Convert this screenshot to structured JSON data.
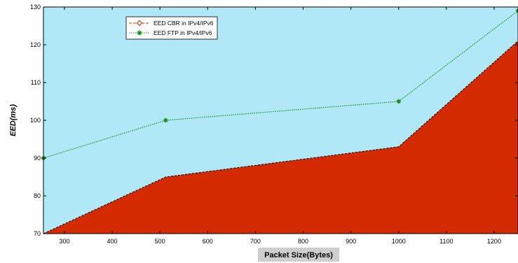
{
  "chart_data": {
    "type": "area",
    "xlabel": "Packet Size(Bytes)",
    "ylabel": "EED(ms)",
    "xlim": [
      256,
      1250
    ],
    "ylim": [
      70,
      130
    ],
    "xticks": [
      300,
      400,
      500,
      600,
      700,
      800,
      900,
      1000,
      1100,
      1200
    ],
    "yticks": [
      70,
      80,
      90,
      100,
      110,
      120,
      130
    ],
    "legend_position": "top-left",
    "background_color": "#b0e8f8",
    "series": [
      {
        "name": "EED CBR in IPv4/IPv6",
        "style": "filled-area-dashed",
        "color": "#d42a00",
        "marker": "diamond",
        "x": [
          256,
          512,
          1000,
          1250
        ],
        "y": [
          70,
          85,
          93,
          121
        ]
      },
      {
        "name": "EED FTP in IPv4/IPv6",
        "style": "dotted-line",
        "color": "#1a8a1a",
        "marker": "star",
        "x": [
          256,
          512,
          1000,
          1250
        ],
        "y": [
          90,
          100,
          105,
          129
        ]
      }
    ]
  }
}
